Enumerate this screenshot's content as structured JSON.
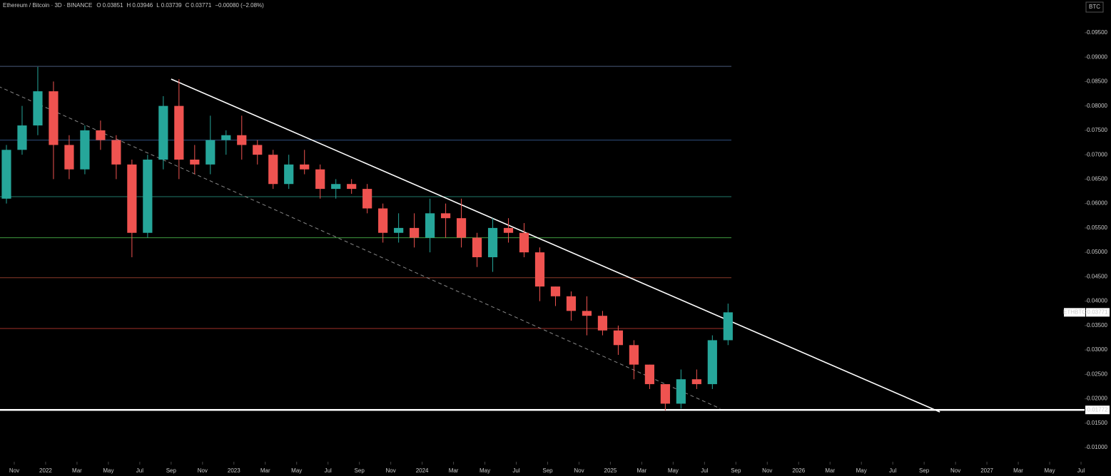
{
  "header": {
    "symbol": "Ethereum / Bitcoin · 3D · BINANCE",
    "ohlc": [
      {
        "label": "O",
        "value": "0.03851"
      },
      {
        "label": "H",
        "value": "0.03946"
      },
      {
        "label": "L",
        "value": "0.03739"
      },
      {
        "label": "C",
        "value": "0.03771"
      }
    ],
    "change": "−0.00080 (−2.08%)",
    "currency": "BTC"
  },
  "chart_data": {
    "type": "candlestick",
    "x": [
      "2021-10",
      "2021-11",
      "2021-12",
      "2022-01",
      "2022-02",
      "2022-03",
      "2022-04",
      "2022-05",
      "2022-06",
      "2022-07",
      "2022-08",
      "2022-09",
      "2022-10",
      "2022-11",
      "2022-12",
      "2023-01",
      "2023-02",
      "2023-03",
      "2023-04",
      "2023-05",
      "2023-06",
      "2023-07",
      "2023-08",
      "2023-09",
      "2023-10",
      "2023-11",
      "2023-12",
      "2024-01",
      "2024-02",
      "2024-03",
      "2024-04",
      "2024-05",
      "2024-06",
      "2024-07",
      "2024-08",
      "2024-09",
      "2024-10",
      "2024-11",
      "2024-12",
      "2025-01",
      "2025-02",
      "2025-03",
      "2025-04",
      "2025-05",
      "2025-06",
      "2025-07",
      "2025-08"
    ],
    "open": [
      0.061,
      0.071,
      0.076,
      0.083,
      0.072,
      0.067,
      0.075,
      0.073,
      0.068,
      0.054,
      0.069,
      0.08,
      0.069,
      0.068,
      0.073,
      0.074,
      0.072,
      0.07,
      0.064,
      0.068,
      0.067,
      0.063,
      0.064,
      0.063,
      0.059,
      0.054,
      0.055,
      0.053,
      0.058,
      0.057,
      0.053,
      0.049,
      0.055,
      0.054,
      0.05,
      0.043,
      0.041,
      0.038,
      0.037,
      0.034,
      0.031,
      0.027,
      0.023,
      0.019,
      0.024,
      0.023,
      0.032
    ],
    "high": [
      0.072,
      0.08,
      0.088,
      0.085,
      0.074,
      0.076,
      0.077,
      0.074,
      0.069,
      0.07,
      0.082,
      0.0855,
      0.072,
      0.078,
      0.075,
      0.078,
      0.073,
      0.071,
      0.07,
      0.071,
      0.068,
      0.065,
      0.065,
      0.064,
      0.06,
      0.058,
      0.058,
      0.061,
      0.06,
      0.061,
      0.054,
      0.057,
      0.057,
      0.056,
      0.051,
      0.043,
      0.042,
      0.041,
      0.038,
      0.035,
      0.032,
      0.027,
      0.023,
      0.026,
      0.026,
      0.033,
      0.0395
    ],
    "low": [
      0.06,
      0.07,
      0.074,
      0.065,
      0.065,
      0.066,
      0.071,
      0.065,
      0.049,
      0.053,
      0.067,
      0.065,
      0.066,
      0.066,
      0.07,
      0.069,
      0.068,
      0.063,
      0.063,
      0.066,
      0.061,
      0.061,
      0.062,
      0.058,
      0.052,
      0.052,
      0.051,
      0.05,
      0.053,
      0.051,
      0.047,
      0.046,
      0.052,
      0.049,
      0.04,
      0.039,
      0.036,
      0.033,
      0.033,
      0.029,
      0.024,
      0.022,
      0.0176,
      0.018,
      0.022,
      0.022,
      0.031
    ],
    "close": [
      0.071,
      0.076,
      0.083,
      0.072,
      0.067,
      0.075,
      0.073,
      0.068,
      0.054,
      0.069,
      0.08,
      0.069,
      0.068,
      0.073,
      0.074,
      0.072,
      0.07,
      0.064,
      0.068,
      0.067,
      0.063,
      0.064,
      0.063,
      0.059,
      0.054,
      0.055,
      0.053,
      0.058,
      0.057,
      0.053,
      0.049,
      0.055,
      0.054,
      0.05,
      0.043,
      0.041,
      0.038,
      0.037,
      0.034,
      0.031,
      0.027,
      0.023,
      0.019,
      0.024,
      0.023,
      0.032,
      0.03771
    ],
    "up_color": "#26a69a",
    "down_color": "#ef5350",
    "xlim": [
      "2021-10",
      "2027-07"
    ],
    "xticks": [
      {
        "value": "2021-11",
        "label": "Nov"
      },
      {
        "value": "2022-01",
        "label": "2022"
      },
      {
        "value": "2022-03",
        "label": "Mar"
      },
      {
        "value": "2022-05",
        "label": "May"
      },
      {
        "value": "2022-07",
        "label": "Jul"
      },
      {
        "value": "2022-09",
        "label": "Sep"
      },
      {
        "value": "2022-11",
        "label": "Nov"
      },
      {
        "value": "2023-01",
        "label": "2023"
      },
      {
        "value": "2023-03",
        "label": "Mar"
      },
      {
        "value": "2023-05",
        "label": "May"
      },
      {
        "value": "2023-07",
        "label": "Jul"
      },
      {
        "value": "2023-09",
        "label": "Sep"
      },
      {
        "value": "2023-11",
        "label": "Nov"
      },
      {
        "value": "2024-01",
        "label": "2024"
      },
      {
        "value": "2024-03",
        "label": "Mar"
      },
      {
        "value": "2024-05",
        "label": "May"
      },
      {
        "value": "2024-07",
        "label": "Jul"
      },
      {
        "value": "2024-09",
        "label": "Sep"
      },
      {
        "value": "2024-11",
        "label": "Nov"
      },
      {
        "value": "2025-01",
        "label": "2025"
      },
      {
        "value": "2025-03",
        "label": "Mar"
      },
      {
        "value": "2025-05",
        "label": "May"
      },
      {
        "value": "2025-07",
        "label": "Jul"
      },
      {
        "value": "2025-09",
        "label": "Sep"
      },
      {
        "value": "2025-11",
        "label": "Nov"
      },
      {
        "value": "2026-01",
        "label": "2026"
      },
      {
        "value": "2026-03",
        "label": "Mar"
      },
      {
        "value": "2026-05",
        "label": "May"
      },
      {
        "value": "2026-07",
        "label": "Jul"
      },
      {
        "value": "2026-09",
        "label": "Sep"
      },
      {
        "value": "2026-11",
        "label": "Nov"
      },
      {
        "value": "2027-01",
        "label": "2027"
      },
      {
        "value": "2027-03",
        "label": "Mar"
      },
      {
        "value": "2027-05",
        "label": "May"
      },
      {
        "value": "2027-07",
        "label": "Jul"
      }
    ],
    "ylim": [
      0.0071,
      0.1017
    ],
    "yticks": [
      {
        "value": 0.095,
        "label": "0.09500"
      },
      {
        "value": 0.09,
        "label": "0.09000"
      },
      {
        "value": 0.085,
        "label": "0.08500"
      },
      {
        "value": 0.08,
        "label": "0.08000"
      },
      {
        "value": 0.075,
        "label": "0.07500"
      },
      {
        "value": 0.07,
        "label": "0.07000"
      },
      {
        "value": 0.065,
        "label": "0.06500"
      },
      {
        "value": 0.06,
        "label": "0.06000"
      },
      {
        "value": 0.055,
        "label": "0.05500"
      },
      {
        "value": 0.05,
        "label": "0.05000"
      },
      {
        "value": 0.045,
        "label": "0.04500"
      },
      {
        "value": 0.04,
        "label": "0.04000"
      },
      {
        "value": 0.035,
        "label": "0.03500"
      },
      {
        "value": 0.03,
        "label": "0.03000"
      },
      {
        "value": 0.025,
        "label": "0.02500"
      },
      {
        "value": 0.02,
        "label": "0.02000"
      },
      {
        "value": 0.015,
        "label": "0.01500"
      },
      {
        "value": 0.01,
        "label": "0.01000"
      }
    ],
    "levels": [
      {
        "value": 0.0881,
        "color": "#4a5a7a"
      },
      {
        "value": 0.073,
        "color": "#2f4f7f"
      },
      {
        "value": 0.0614,
        "color": "#1f7a6a"
      },
      {
        "value": 0.053,
        "color": "#3f9a3f"
      },
      {
        "value": 0.0448,
        "color": "#8a3a2a"
      },
      {
        "value": 0.0344,
        "color": "#a0302a"
      }
    ],
    "support": {
      "value": 0.01772,
      "color": "#ffffff"
    },
    "trendlines": [
      {
        "x": [
          "2022-09",
          "2026-10"
        ],
        "y": [
          0.0855,
          0.0173
        ],
        "color": "#ffffff",
        "style": "solid"
      },
      {
        "x": [
          "2021-10",
          "2025-08"
        ],
        "y": [
          0.084,
          0.018
        ],
        "color": "#888888",
        "style": "dashed"
      }
    ],
    "last_price": {
      "label": "ETHBTC",
      "value": 0.03771
    }
  }
}
